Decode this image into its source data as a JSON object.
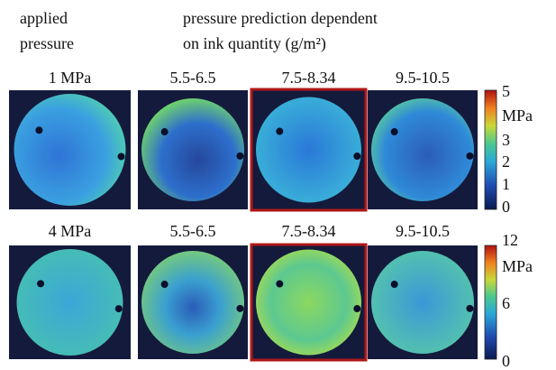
{
  "header": {
    "left": [
      "applied",
      "pressure"
    ],
    "right": [
      "pressure prediction dependent",
      "on ink quantity (g/m²)"
    ]
  },
  "rows": [
    {
      "label": "1 MPa",
      "columns": [
        "5.5-6.5",
        "7.5-8.34",
        "9.5-10.5"
      ],
      "colorbar": [
        "5",
        "MPa",
        "3",
        "2",
        "1",
        "0"
      ]
    },
    {
      "label": "4 MPa",
      "columns": [
        "5.5-6.5",
        "7.5-8.34",
        "9.5-10.5"
      ],
      "colorbar": [
        "12",
        "MPa",
        "6",
        "0"
      ]
    }
  ]
}
